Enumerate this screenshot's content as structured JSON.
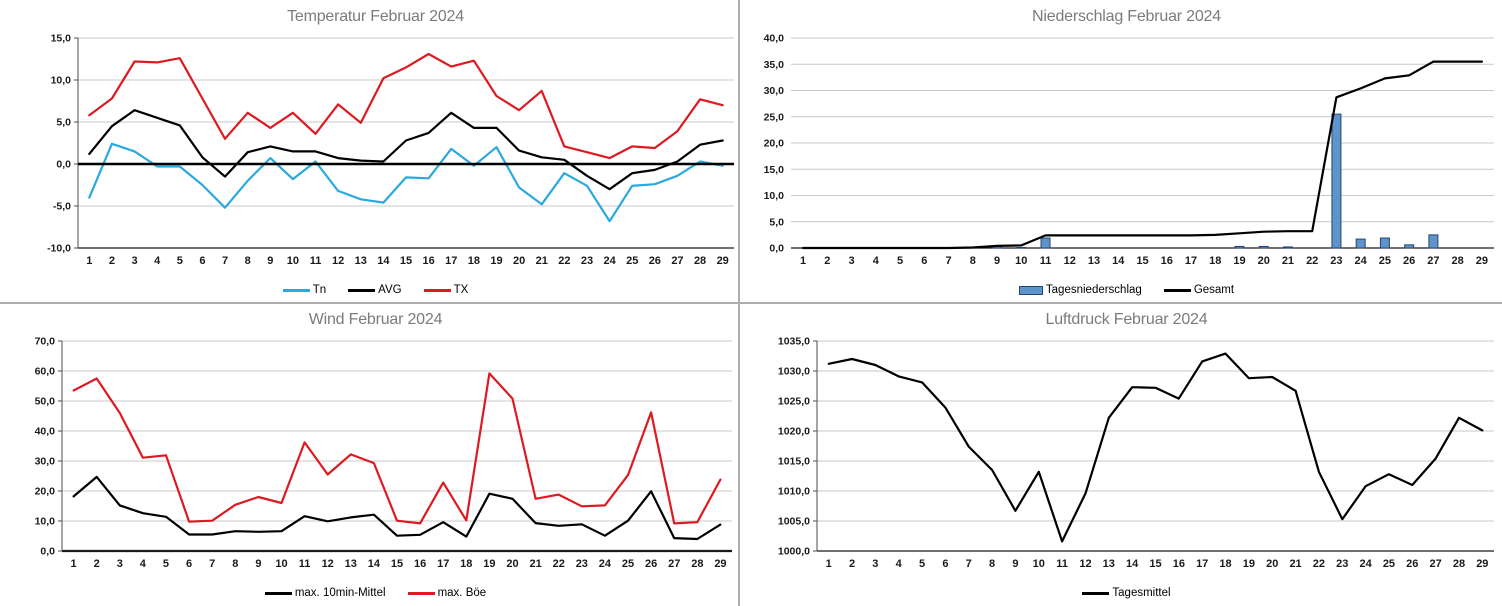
{
  "page": {
    "background": "#ffffff",
    "divider_color": "#aeaeae",
    "title_color": "#7b7b7b",
    "gridline_color": "#c9c9c9",
    "axis_color": "#1a1a1a"
  },
  "chart_data": [
    {
      "id": "temperatur",
      "type": "line",
      "title": "Temperatur Februar 2024",
      "xlabel": "",
      "ylabel": "",
      "categories": [
        "1",
        "2",
        "3",
        "4",
        "5",
        "6",
        "7",
        "8",
        "9",
        "10",
        "11",
        "12",
        "13",
        "14",
        "15",
        "16",
        "17",
        "18",
        "19",
        "20",
        "21",
        "22",
        "23",
        "24",
        "25",
        "26",
        "27",
        "28",
        "29"
      ],
      "ylim": [
        -10,
        15
      ],
      "ytick_step": 5,
      "grid": true,
      "legend_position": "bottom",
      "zero_line": true,
      "left_axis_line": true,
      "bottom_bold": false,
      "series": [
        {
          "name": "Tn",
          "type": "line",
          "color": "#29A9DF",
          "values": [
            -4.0,
            2.4,
            1.5,
            -0.3,
            -0.3,
            -2.5,
            -5.2,
            -2.0,
            0.7,
            -1.8,
            0.3,
            -3.2,
            -4.2,
            -4.6,
            -1.6,
            -1.7,
            1.8,
            -0.2,
            2.0,
            -2.8,
            -4.8,
            -1.1,
            -2.6,
            -6.8,
            -2.6,
            -2.4,
            -1.4,
            0.3,
            -0.2
          ]
        },
        {
          "name": "AVG",
          "type": "line",
          "color": "#000000",
          "values": [
            1.2,
            4.5,
            6.4,
            5.5,
            4.6,
            0.8,
            -1.5,
            1.4,
            2.1,
            1.5,
            1.5,
            0.7,
            0.4,
            0.3,
            2.8,
            3.7,
            6.1,
            4.3,
            4.3,
            1.6,
            0.8,
            0.5,
            -1.4,
            -3.0,
            -1.1,
            -0.7,
            0.3,
            2.3,
            2.8
          ]
        },
        {
          "name": "TX",
          "type": "line",
          "color": "#DD1A21",
          "values": [
            5.8,
            7.8,
            12.2,
            12.1,
            12.6,
            7.8,
            3.0,
            6.1,
            4.3,
            6.1,
            3.6,
            7.1,
            4.9,
            10.2,
            11.5,
            13.1,
            11.6,
            12.3,
            8.1,
            6.4,
            8.7,
            2.1,
            1.4,
            0.7,
            2.1,
            1.9,
            3.9,
            7.7,
            7.0
          ]
        }
      ]
    },
    {
      "id": "niederschlag",
      "type": "bar",
      "title": "Niederschlag Februar 2024",
      "xlabel": "",
      "ylabel": "",
      "categories": [
        "1",
        "2",
        "3",
        "4",
        "5",
        "6",
        "7",
        "8",
        "9",
        "10",
        "11",
        "12",
        "13",
        "14",
        "15",
        "16",
        "17",
        "18",
        "19",
        "20",
        "21",
        "22",
        "23",
        "24",
        "25",
        "26",
        "27",
        "28",
        "29"
      ],
      "ylim": [
        0,
        40
      ],
      "ytick_step": 5,
      "grid": true,
      "legend_position": "bottom",
      "zero_line": false,
      "left_axis_line": false,
      "bottom_bold": false,
      "series": [
        {
          "name": "Tagesniederschlag",
          "type": "bar",
          "color": "#5E94CC",
          "border_color": "#24466E",
          "values": [
            0,
            0,
            0,
            0,
            0,
            0,
            0,
            0,
            0.4,
            0.1,
            1.9,
            0,
            0,
            0,
            0,
            0,
            0,
            0,
            0.3,
            0.3,
            0.2,
            0,
            25.5,
            1.7,
            1.9,
            0.6,
            2.5,
            0,
            0
          ]
        },
        {
          "name": "Gesamt",
          "type": "line",
          "color": "#000000",
          "values": [
            0,
            0,
            0,
            0,
            0,
            0,
            0,
            0.1,
            0.4,
            0.5,
            2.4,
            2.4,
            2.4,
            2.4,
            2.4,
            2.4,
            2.4,
            2.5,
            2.8,
            3.1,
            3.2,
            3.2,
            28.7,
            30.4,
            32.3,
            32.9,
            35.5,
            35.5,
            35.5
          ]
        }
      ]
    },
    {
      "id": "wind",
      "type": "line",
      "title": "Wind Februar 2024",
      "xlabel": "",
      "ylabel": "",
      "categories": [
        "1",
        "2",
        "3",
        "4",
        "5",
        "6",
        "7",
        "8",
        "9",
        "10",
        "11",
        "12",
        "13",
        "14",
        "15",
        "16",
        "17",
        "18",
        "19",
        "20",
        "21",
        "22",
        "23",
        "24",
        "25",
        "26",
        "27",
        "28",
        "29"
      ],
      "ylim": [
        0,
        70
      ],
      "ytick_step": 10,
      "grid": true,
      "legend_position": "bottom",
      "zero_line": false,
      "left_axis_line": true,
      "bottom_bold": true,
      "series": [
        {
          "name": "max. 10min-Mittel",
          "type": "line",
          "color": "#000000",
          "values": [
            18.2,
            24.7,
            15.2,
            12.6,
            11.4,
            5.5,
            5.5,
            6.6,
            6.4,
            6.6,
            11.6,
            9.9,
            11.2,
            12.1,
            5.1,
            5.4,
            9.6,
            4.8,
            19.1,
            17.4,
            9.3,
            8.4,
            8.9,
            5.1,
            10.1,
            19.9,
            4.3,
            4.0,
            8.8
          ]
        },
        {
          "name": "max. Böe",
          "type": "line",
          "color": "#DD1A21",
          "values": [
            53.5,
            57.5,
            46.0,
            31.1,
            31.9,
            9.8,
            10.1,
            15.4,
            18.0,
            16.0,
            36.2,
            25.5,
            32.2,
            29.3,
            10.1,
            9.2,
            22.8,
            10.2,
            59.2,
            50.8,
            17.4,
            18.8,
            14.9,
            15.2,
            25.3,
            46.2,
            9.2,
            9.6,
            23.8
          ]
        }
      ]
    },
    {
      "id": "luftdruck",
      "type": "line",
      "title": "Luftdruck Februar 2024",
      "xlabel": "",
      "ylabel": "",
      "categories": [
        "1",
        "2",
        "3",
        "4",
        "5",
        "6",
        "7",
        "8",
        "9",
        "10",
        "11",
        "12",
        "13",
        "14",
        "15",
        "16",
        "17",
        "18",
        "19",
        "20",
        "21",
        "22",
        "23",
        "24",
        "25",
        "26",
        "27",
        "28",
        "29"
      ],
      "ylim": [
        1000,
        1035
      ],
      "ytick_step": 5,
      "grid": true,
      "legend_position": "bottom",
      "zero_line": false,
      "left_axis_line": true,
      "bottom_bold": false,
      "series": [
        {
          "name": "Tagesmittel",
          "type": "line",
          "color": "#000000",
          "values": [
            1031.2,
            1032.0,
            1031.0,
            1029.1,
            1028.1,
            1023.9,
            1017.4,
            1013.5,
            1006.7,
            1013.2,
            1001.6,
            1009.6,
            1022.2,
            1027.3,
            1027.2,
            1025.4,
            1031.6,
            1032.9,
            1028.8,
            1029.0,
            1026.7,
            1013.2,
            1005.3,
            1010.8,
            1012.8,
            1011.0,
            1015.4,
            1022.2,
            1020.1
          ]
        }
      ]
    }
  ]
}
